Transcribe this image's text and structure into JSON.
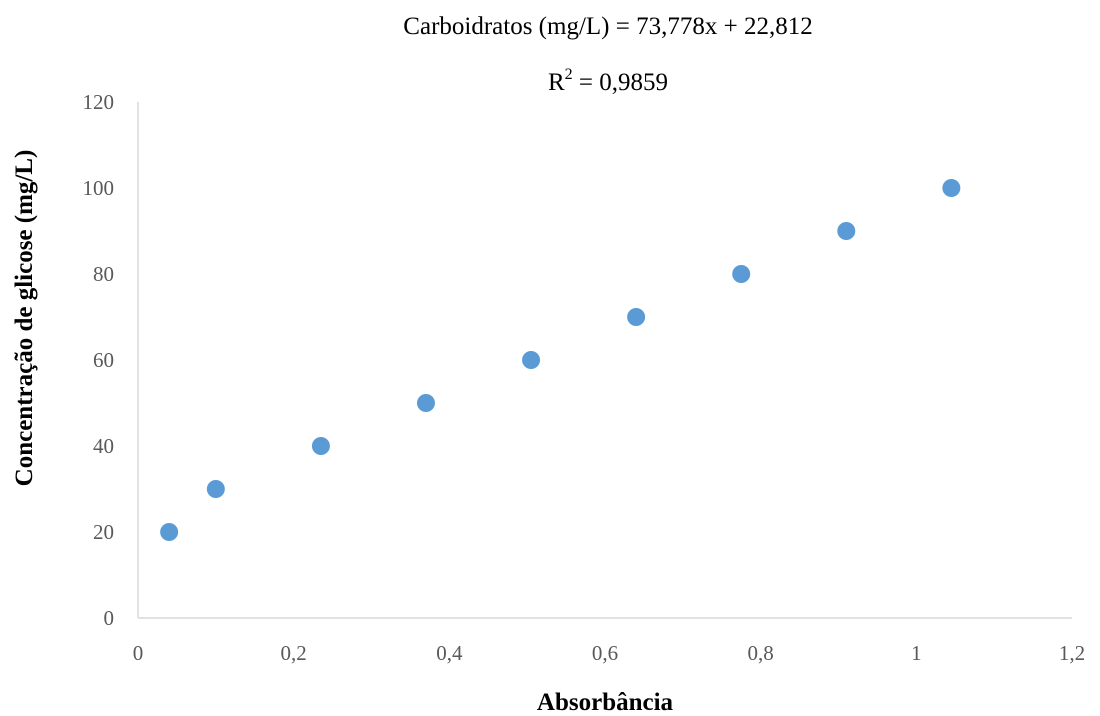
{
  "chart_data": {
    "type": "scatter",
    "equation_label": "Carboidratos (mg/L) = 73,778x + 22,812",
    "r2_label": "R",
    "r2_sup": "2",
    "r2_value": " = 0,9859",
    "xlabel": "Absorbância",
    "ylabel": "Concentração de glicose (mg/L)",
    "xlim": [
      0,
      1.2
    ],
    "ylim": [
      0,
      120
    ],
    "x_ticks": [
      0,
      0.2,
      0.4,
      0.6,
      0.8,
      1,
      1.2
    ],
    "x_tick_labels": [
      "0",
      "0,2",
      "0,4",
      "0,6",
      "0,8",
      "1",
      "1,2"
    ],
    "y_ticks": [
      0,
      20,
      40,
      60,
      80,
      100,
      120
    ],
    "y_tick_labels": [
      "0",
      "20",
      "40",
      "60",
      "80",
      "100",
      "120"
    ],
    "grid": false,
    "marker_color": "#5b9bd5",
    "points": [
      {
        "x": 0.04,
        "y": 20
      },
      {
        "x": 0.1,
        "y": 30
      },
      {
        "x": 0.235,
        "y": 40
      },
      {
        "x": 0.37,
        "y": 50
      },
      {
        "x": 0.505,
        "y": 60
      },
      {
        "x": 0.64,
        "y": 70
      },
      {
        "x": 0.775,
        "y": 80
      },
      {
        "x": 0.91,
        "y": 90
      },
      {
        "x": 1.045,
        "y": 100
      }
    ]
  }
}
